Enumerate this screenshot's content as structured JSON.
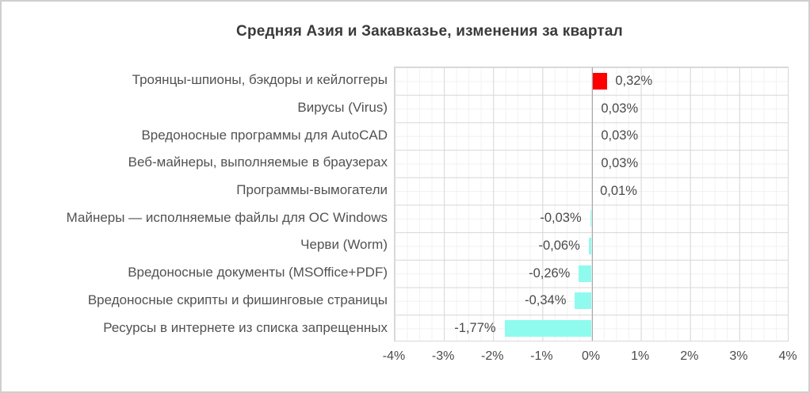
{
  "title": "Средняя Азия и Закавказье, изменения за квартал",
  "chart_data": {
    "type": "bar",
    "orientation": "horizontal",
    "title": "Средняя Азия и Закавказье, изменения за квартал",
    "categories": [
      "Троянцы-шпионы, бэкдоры и кейлоггеры",
      "Вирусы (Virus)",
      "Вредоносные программы для AutoCAD",
      "Веб-майнеры, выполняемые в браузерах",
      "Программы-вымогатели",
      "Майнеры — исполняемые файлы для ОС Windows",
      "Черви (Worm)",
      "Вредоносные документы (MSOffice+PDF)",
      "Вредоносные скрипты и фишинговые страницы",
      "Ресурсы в интернете из списка запрещенных"
    ],
    "values": [
      0.32,
      0.03,
      0.03,
      0.03,
      0.01,
      -0.03,
      -0.06,
      -0.26,
      -0.34,
      -1.77
    ],
    "value_labels": [
      "0,32%",
      "0,03%",
      "0,03%",
      "0,03%",
      "0,01%",
      "-0,03%",
      "-0,06%",
      "-0,26%",
      "-0,34%",
      "-1,77%"
    ],
    "x_tick_labels": [
      "-4%",
      "-3%",
      "-2%",
      "-1%",
      "0%",
      "1%",
      "2%",
      "3%",
      "4%"
    ],
    "x_tick_values": [
      -4,
      -3,
      -2,
      -1,
      0,
      1,
      2,
      3,
      4
    ],
    "xlim": [
      -4,
      4
    ],
    "grid": {
      "major_vertical": true,
      "minor_vertical": true,
      "major_horizontal": true,
      "minor_horizontal": true
    },
    "legend": "none",
    "colors": {
      "positive_bar": "#FF0000",
      "negative_bar": "#8FFBEF",
      "grid_major": "#D9D9D9",
      "grid_minor": "#F1F1F1",
      "zero_axis": "#A8A8A8",
      "text": "#4A4A4A",
      "title_text": "#3A3A3A"
    }
  }
}
